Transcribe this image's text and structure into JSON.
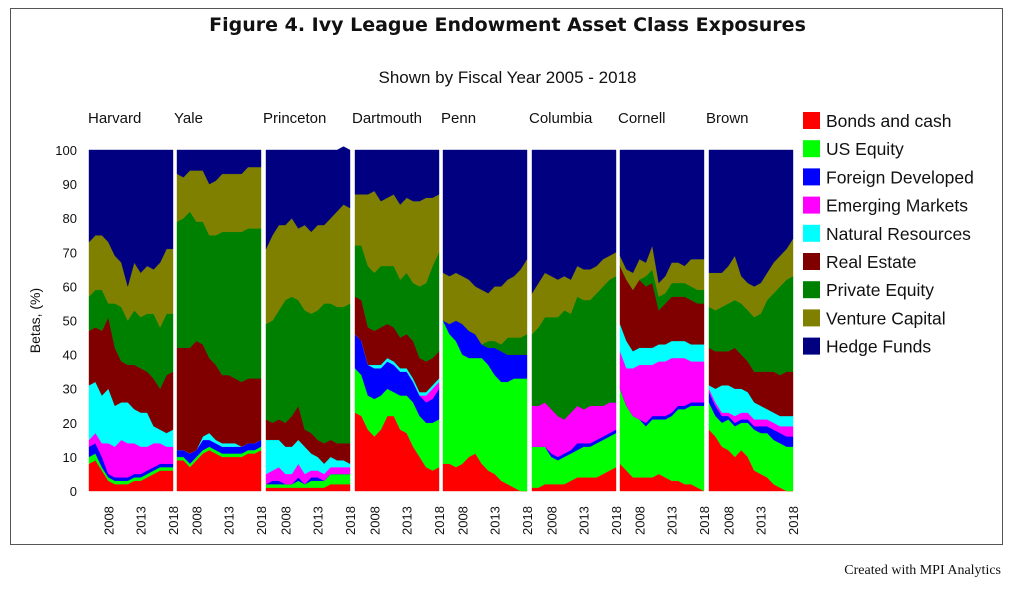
{
  "title": "Figure 4. Ivy League Endowment Asset Class Exposures",
  "subtitle": "Shown by Fiscal Year 2005 - 2018",
  "credit": "Created with MPI Analytics",
  "chart_data": {
    "type": "area",
    "stacked": true,
    "ylabel": "Betas, (%)",
    "ylim": [
      0,
      100
    ],
    "yticks": [
      0,
      10,
      20,
      30,
      40,
      50,
      60,
      70,
      80,
      90,
      100
    ],
    "x": [
      2005,
      2006,
      2007,
      2008,
      2009,
      2010,
      2011,
      2012,
      2013,
      2014,
      2015,
      2016,
      2017,
      2018
    ],
    "xtick_labels": [
      "2008",
      "2013",
      "2018"
    ],
    "legend_position": "right",
    "series_names": [
      "Bonds and cash",
      "US Equity",
      "Foreign Developed",
      "Emerging Markets",
      "Natural Resources",
      "Real Estate",
      "Private Equity",
      "Venture Capital",
      "Hedge Funds"
    ],
    "colors": [
      "#ff0000",
      "#00ff00",
      "#0000ff",
      "#ff00ff",
      "#00ffff",
      "#800000",
      "#008000",
      "#808000",
      "#000080"
    ],
    "panels": [
      {
        "name": "Harvard",
        "series": [
          [
            8,
            9,
            6,
            3,
            2,
            2,
            2,
            3,
            3,
            4,
            5,
            6,
            6,
            6
          ],
          [
            2,
            2,
            1,
            1,
            1,
            1,
            1,
            1,
            1,
            1,
            1,
            1,
            1,
            1
          ],
          [
            3,
            3,
            3,
            1,
            1,
            1,
            1,
            1,
            1,
            1,
            1,
            1,
            1,
            1
          ],
          [
            2,
            3,
            4,
            9,
            9,
            11,
            10,
            9,
            8,
            7,
            7,
            6,
            5,
            5
          ],
          [
            16,
            15,
            14,
            16,
            12,
            11,
            12,
            10,
            10,
            10,
            5,
            4,
            4,
            5
          ],
          [
            16,
            16,
            19,
            21,
            17,
            12,
            11,
            13,
            13,
            12,
            14,
            12,
            17,
            17
          ],
          [
            10,
            11,
            12,
            4,
            13,
            16,
            13,
            16,
            15,
            17,
            19,
            18,
            18,
            17
          ],
          [
            16,
            16,
            16,
            18,
            14,
            13,
            10,
            14,
            13,
            14,
            13,
            19,
            19,
            19
          ],
          [
            27,
            25,
            25,
            27,
            31,
            33,
            40,
            33,
            36,
            34,
            35,
            33,
            29,
            29
          ]
        ]
      },
      {
        "name": "Yale",
        "series": [
          [
            9,
            9,
            7,
            9,
            11,
            12,
            11,
            10,
            10,
            10,
            10,
            11,
            11,
            12
          ],
          [
            1,
            1,
            1,
            1,
            1,
            1,
            1,
            1,
            1,
            1,
            1,
            1,
            1,
            1
          ],
          [
            2,
            2,
            3,
            2,
            3,
            2,
            2,
            2,
            2,
            2,
            2,
            2,
            2,
            2
          ],
          [
            0,
            0,
            0,
            0,
            0,
            0,
            0,
            0,
            0,
            0,
            0,
            0,
            0,
            0
          ],
          [
            0,
            0,
            0,
            0,
            1,
            2,
            1,
            1,
            1,
            1,
            0,
            0,
            0,
            0
          ],
          [
            30,
            30,
            31,
            32,
            27,
            22,
            22,
            20,
            20,
            19,
            19,
            19,
            19,
            18
          ],
          [
            37,
            38,
            40,
            35,
            36,
            36,
            38,
            42,
            42,
            43,
            44,
            44,
            44,
            44
          ],
          [
            14,
            12,
            12,
            15,
            15,
            15,
            16,
            17,
            17,
            17,
            17,
            18,
            18,
            18
          ],
          [
            7,
            8,
            6,
            6,
            6,
            10,
            9,
            7,
            7,
            7,
            7,
            5,
            5,
            5
          ]
        ]
      },
      {
        "name": "Princeton",
        "series": [
          [
            1,
            1,
            1,
            1,
            1,
            1,
            1,
            1,
            1,
            1,
            2,
            2,
            2,
            2
          ],
          [
            1,
            1,
            1,
            1,
            1,
            2,
            1,
            2,
            2,
            2,
            3,
            3,
            3,
            3
          ],
          [
            0,
            1,
            1,
            0,
            0,
            1,
            0,
            1,
            1,
            0,
            0,
            0,
            0,
            0
          ],
          [
            3,
            3,
            4,
            3,
            3,
            4,
            3,
            2,
            2,
            2,
            2,
            2,
            2,
            2
          ],
          [
            10,
            9,
            8,
            8,
            8,
            7,
            8,
            5,
            4,
            3,
            3,
            2,
            2,
            1
          ],
          [
            6,
            5,
            6,
            7,
            9,
            10,
            5,
            6,
            5,
            6,
            5,
            5,
            5,
            6
          ],
          [
            28,
            30,
            32,
            36,
            35,
            31,
            35,
            35,
            38,
            41,
            40,
            40,
            40,
            41
          ],
          [
            22,
            25,
            25,
            22,
            23,
            21,
            25,
            24,
            25,
            23,
            25,
            28,
            30,
            28
          ],
          [
            29,
            25,
            22,
            22,
            20,
            23,
            22,
            24,
            22,
            22,
            20,
            18,
            17,
            17
          ]
        ]
      },
      {
        "name": "Dartmouth",
        "series": [
          [
            23,
            22,
            18,
            16,
            18,
            22,
            22,
            18,
            17,
            13,
            10,
            7,
            6,
            7
          ],
          [
            13,
            12,
            10,
            11,
            10,
            8,
            7,
            10,
            11,
            13,
            12,
            13,
            14,
            14
          ],
          [
            10,
            10,
            9,
            9,
            8,
            8,
            8,
            7,
            7,
            6,
            6,
            6,
            7,
            9
          ],
          [
            0,
            0,
            0,
            0,
            0,
            0,
            0,
            0,
            0,
            0,
            0,
            2,
            3,
            2
          ],
          [
            0,
            0,
            0,
            1,
            1,
            1,
            1,
            1,
            1,
            1,
            1,
            1,
            1,
            1
          ],
          [
            11,
            12,
            11,
            10,
            11,
            10,
            10,
            9,
            10,
            11,
            10,
            9,
            8,
            8
          ],
          [
            15,
            16,
            18,
            17,
            18,
            17,
            18,
            17,
            18,
            17,
            21,
            23,
            27,
            29
          ],
          [
            15,
            15,
            21,
            24,
            19,
            20,
            21,
            22,
            22,
            24,
            25,
            25,
            20,
            17
          ],
          [
            13,
            13,
            13,
            12,
            15,
            14,
            13,
            16,
            14,
            15,
            15,
            14,
            14,
            13
          ]
        ]
      },
      {
        "name": "Penn",
        "series": [
          [
            8,
            8,
            7,
            8,
            10,
            11,
            8,
            6,
            5,
            3,
            2,
            1,
            0,
            0
          ],
          [
            42,
            38,
            37,
            32,
            29,
            28,
            31,
            31,
            29,
            29,
            30,
            32,
            33,
            33
          ],
          [
            0,
            3,
            6,
            9,
            8,
            7,
            4,
            5,
            8,
            9,
            8,
            7,
            7,
            7
          ],
          [
            0,
            0,
            0,
            0,
            0,
            0,
            0,
            0,
            0,
            0,
            0,
            0,
            0,
            0
          ],
          [
            0,
            0,
            0,
            0,
            0,
            0,
            0,
            0,
            0,
            0,
            0,
            0,
            0,
            0
          ],
          [
            0,
            0,
            0,
            0,
            0,
            0,
            0,
            0,
            0,
            0,
            0,
            0,
            0,
            0
          ],
          [
            0,
            0,
            0,
            0,
            0,
            0,
            0,
            2,
            2,
            2,
            5,
            5,
            5,
            6
          ],
          [
            14,
            14,
            14,
            14,
            15,
            14,
            16,
            14,
            16,
            17,
            17,
            18,
            20,
            22
          ],
          [
            36,
            37,
            36,
            37,
            38,
            40,
            41,
            42,
            40,
            40,
            38,
            37,
            35,
            32
          ]
        ]
      },
      {
        "name": "Columbia",
        "series": [
          [
            1,
            1,
            2,
            2,
            2,
            2,
            3,
            4,
            4,
            4,
            4,
            5,
            6,
            7
          ],
          [
            12,
            12,
            11,
            8,
            7,
            8,
            8,
            8,
            9,
            9,
            10,
            10,
            10,
            10
          ],
          [
            0,
            0,
            0,
            1,
            1,
            1,
            1,
            2,
            1,
            1,
            1,
            1,
            1,
            1
          ],
          [
            12,
            12,
            13,
            13,
            12,
            10,
            11,
            11,
            10,
            11,
            10,
            9,
            9,
            8
          ],
          [
            0,
            0,
            0,
            0,
            0,
            0,
            0,
            0,
            0,
            0,
            0,
            0,
            0,
            0
          ],
          [
            0,
            0,
            0,
            0,
            0,
            0,
            0,
            0,
            0,
            0,
            0,
            0,
            0,
            0
          ],
          [
            21,
            23,
            25,
            27,
            29,
            32,
            29,
            32,
            32,
            31,
            33,
            35,
            36,
            37
          ],
          [
            12,
            13,
            13,
            12,
            11,
            10,
            10,
            9,
            9,
            9,
            8,
            8,
            7,
            7
          ],
          [
            42,
            39,
            36,
            37,
            38,
            37,
            38,
            34,
            35,
            35,
            34,
            32,
            31,
            30
          ]
        ]
      },
      {
        "name": "Cornell",
        "series": [
          [
            8,
            6,
            4,
            4,
            4,
            4,
            5,
            4,
            3,
            3,
            2,
            2,
            1,
            0
          ],
          [
            22,
            19,
            18,
            17,
            15,
            17,
            16,
            17,
            19,
            21,
            22,
            23,
            24,
            25
          ],
          [
            0,
            0,
            0,
            0,
            1,
            1,
            1,
            1,
            1,
            1,
            1,
            1,
            1,
            1
          ],
          [
            11,
            11,
            14,
            16,
            17,
            15,
            16,
            16,
            16,
            14,
            14,
            12,
            12,
            12
          ],
          [
            8,
            8,
            5,
            5,
            5,
            5,
            5,
            5,
            5,
            5,
            5,
            5,
            5,
            5
          ],
          [
            17,
            18,
            18,
            20,
            18,
            19,
            10,
            12,
            13,
            13,
            13,
            13,
            12,
            12
          ],
          [
            0,
            0,
            0,
            0,
            3,
            4,
            4,
            3,
            4,
            4,
            4,
            4,
            4,
            4
          ],
          [
            3,
            3,
            5,
            6,
            4,
            7,
            4,
            5,
            6,
            6,
            5,
            8,
            9,
            9
          ],
          [
            31,
            35,
            36,
            32,
            33,
            28,
            39,
            37,
            33,
            33,
            34,
            32,
            32,
            32
          ]
        ]
      },
      {
        "name": "Brown",
        "series": [
          [
            18,
            16,
            13,
            12,
            10,
            12,
            10,
            6,
            5,
            4,
            2,
            1,
            0,
            0
          ],
          [
            8,
            6,
            7,
            9,
            9,
            8,
            10,
            12,
            12,
            13,
            13,
            13,
            13,
            13
          ],
          [
            3,
            3,
            2,
            1,
            1,
            1,
            1,
            1,
            2,
            2,
            3,
            3,
            3,
            3
          ],
          [
            1,
            1,
            1,
            1,
            2,
            2,
            2,
            2,
            2,
            2,
            2,
            2,
            3,
            3
          ],
          [
            1,
            4,
            8,
            8,
            8,
            7,
            6,
            5,
            4,
            3,
            3,
            3,
            3,
            3
          ],
          [
            11,
            11,
            10,
            10,
            12,
            10,
            9,
            9,
            10,
            11,
            12,
            12,
            13,
            13
          ],
          [
            12,
            12,
            13,
            14,
            14,
            15,
            15,
            16,
            17,
            21,
            23,
            26,
            27,
            28
          ],
          [
            10,
            11,
            10,
            11,
            13,
            8,
            8,
            9,
            9,
            8,
            9,
            9,
            9,
            11
          ],
          [
            36,
            36,
            36,
            34,
            31,
            37,
            39,
            40,
            39,
            36,
            33,
            31,
            29,
            26
          ]
        ]
      }
    ]
  }
}
